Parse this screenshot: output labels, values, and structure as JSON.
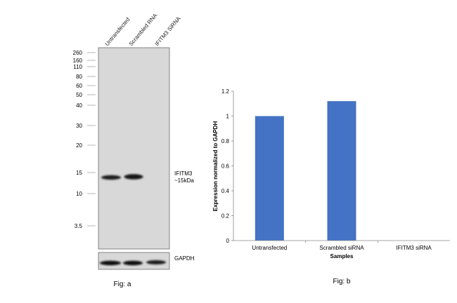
{
  "blot": {
    "lanes": [
      "Untransfected",
      "Scrambled RNA",
      "IFITM3 SiRNA"
    ],
    "markers": [
      "260",
      "160",
      "110",
      "80",
      "60",
      "50",
      "40",
      "30",
      "20",
      "15",
      "10",
      "3.5"
    ],
    "band_label_line1": "IFITM3",
    "band_label_line2": "~15kDa",
    "loading_control_label": "GAPDH",
    "caption": "Fig: a"
  },
  "chart_data": {
    "type": "bar",
    "categories": [
      "Untransfected",
      "Scrambled siRNA",
      "IFITM3 siRNA"
    ],
    "values": [
      1.0,
      1.12,
      0
    ],
    "xlabel": "Samples",
    "ylabel": "Expression normalized to GAPDH",
    "ylim": [
      0,
      1.2
    ],
    "yticks": [
      "0",
      "0.2",
      "0.4",
      "0.6",
      "0.8",
      "1",
      "1.2"
    ],
    "grid": false,
    "legend": "none",
    "bar_color": "#4472C4",
    "caption": "Fig: b"
  }
}
